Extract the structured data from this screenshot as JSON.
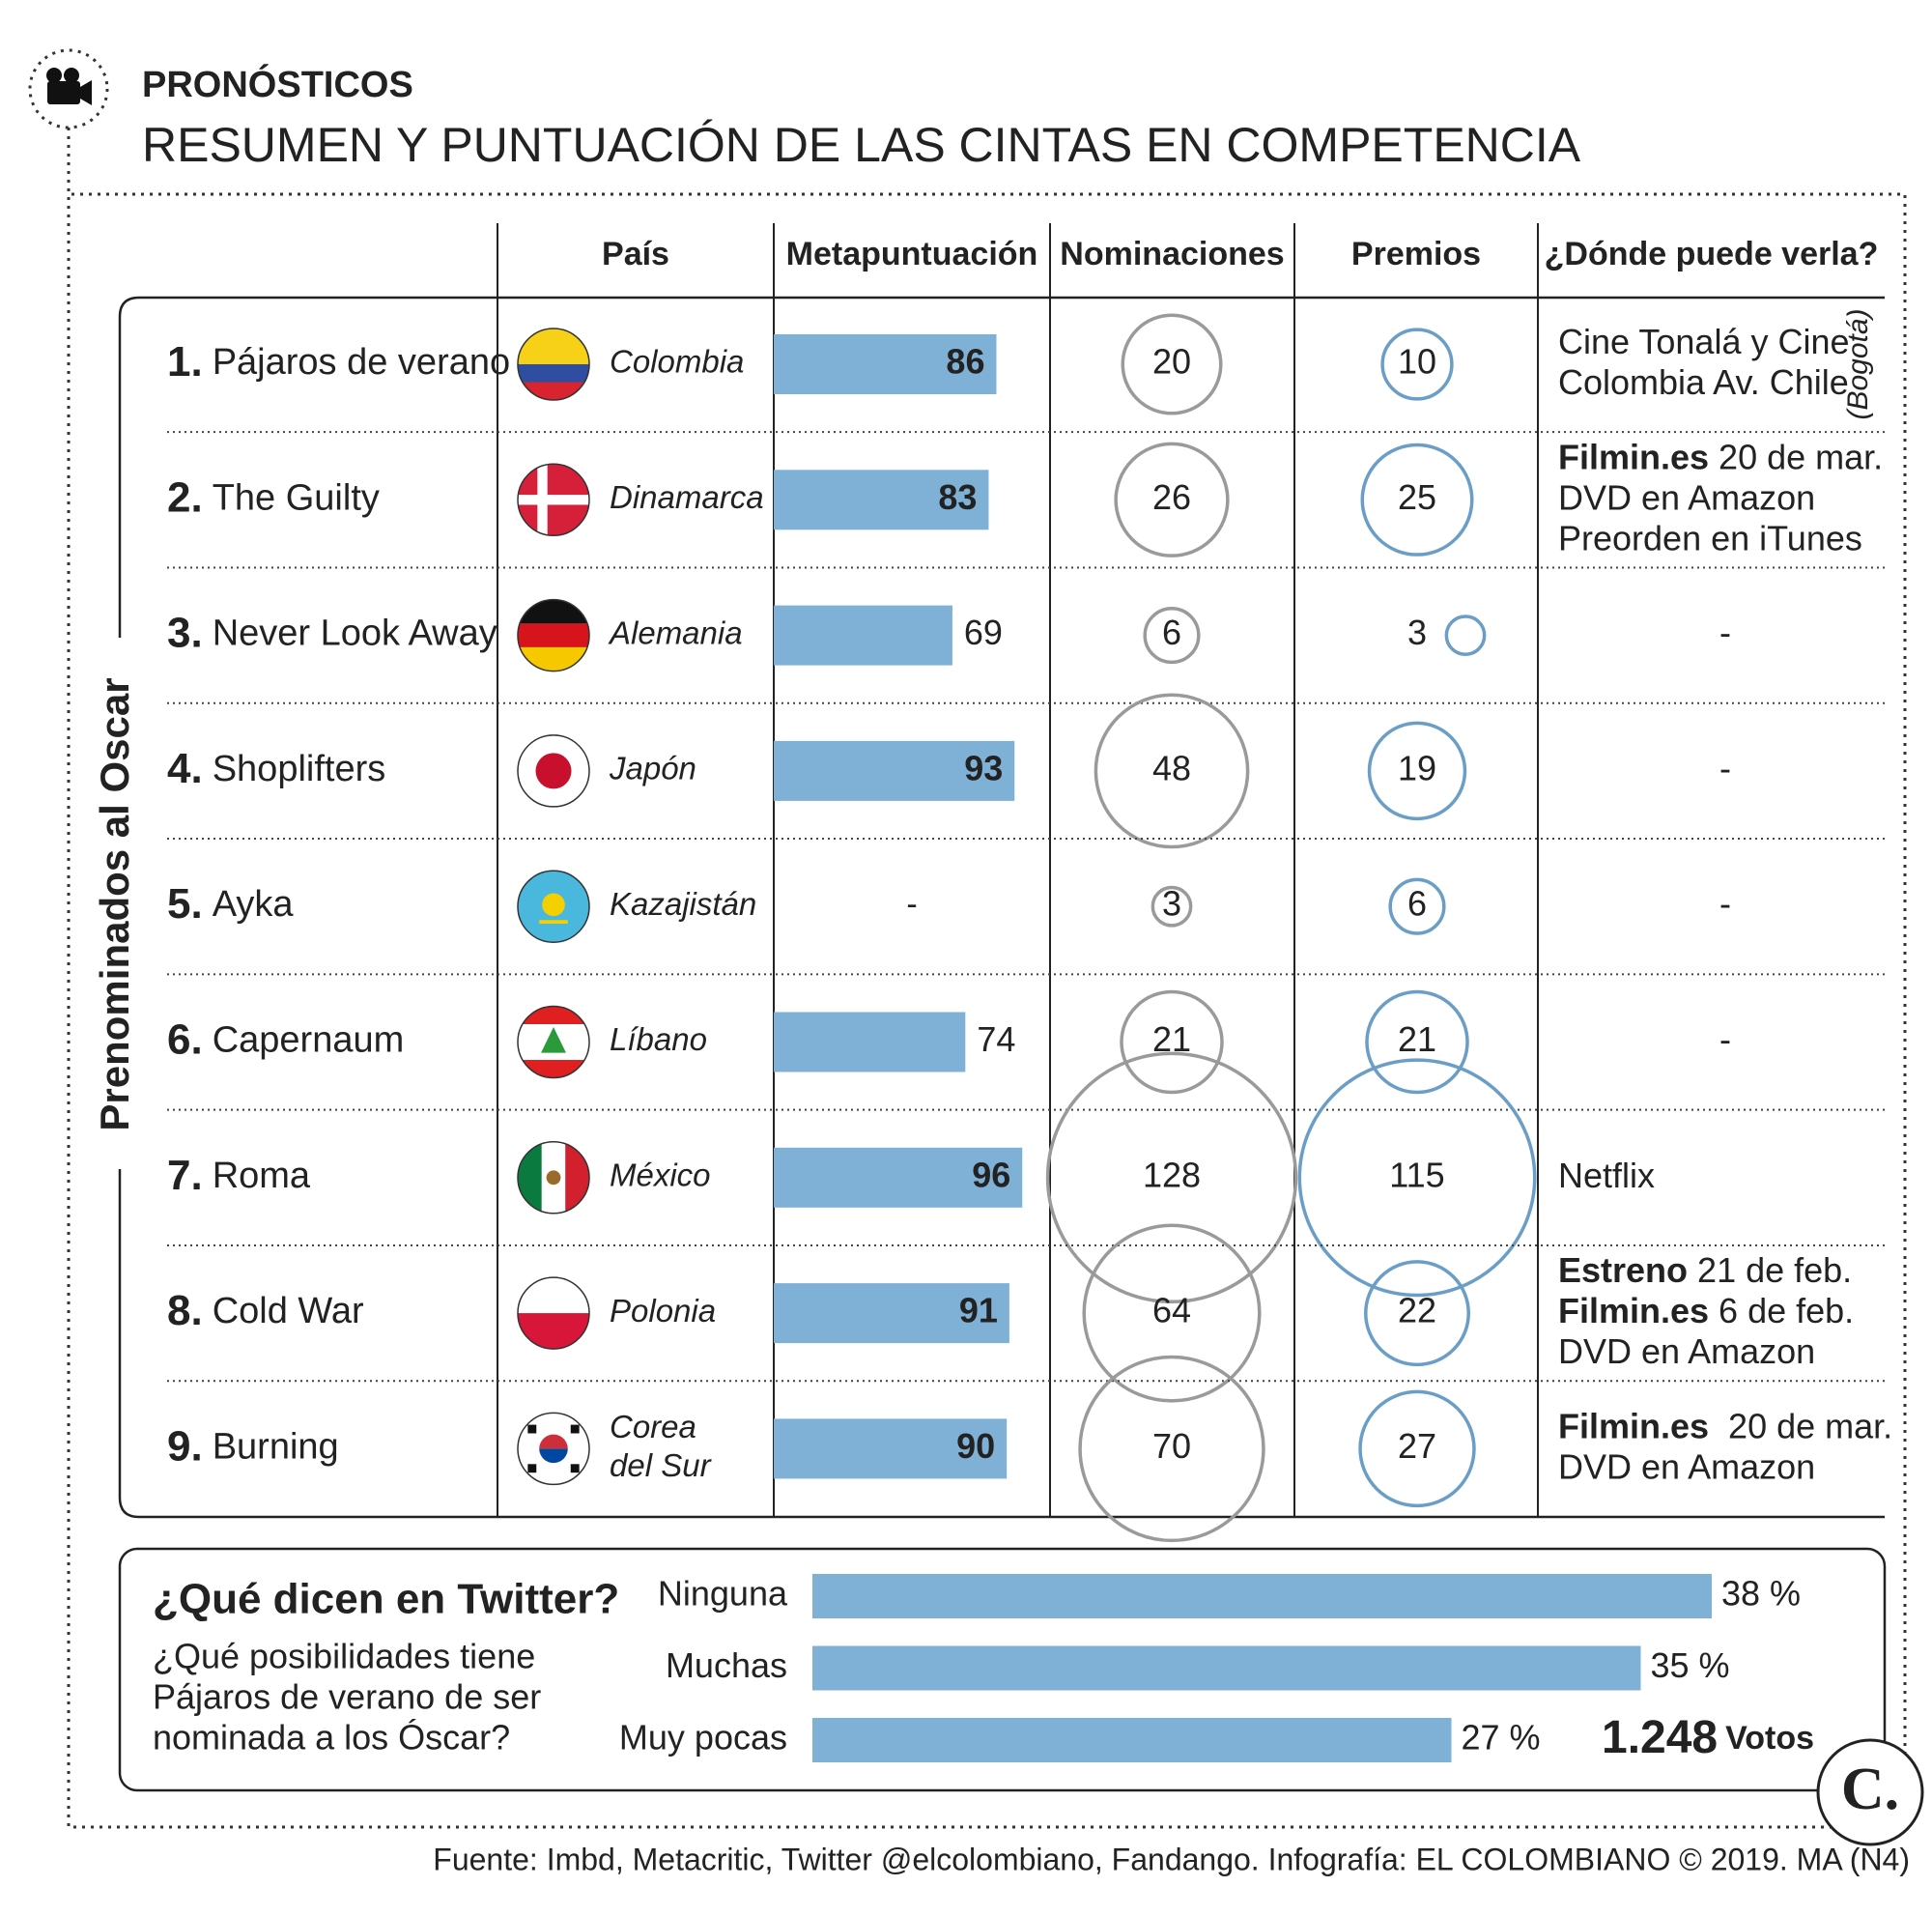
{
  "header": {
    "kicker": "PRONÓSTICOS",
    "title": "RESUMEN Y PUNTUACIÓN DE LAS CINTAS EN COMPETENCIA"
  },
  "table": {
    "side_label": "Prenominados al Oscar",
    "columns": [
      "País",
      "Metapuntuación",
      "Nominaciones",
      "Premios",
      "¿Dónde puede verla?"
    ],
    "rows": [
      {
        "rank": "1.",
        "film": "Pájaros de verano",
        "country": "Colombia",
        "metascore": 86,
        "nominations": 20,
        "awards": 10,
        "where": [
          {
            "text": "Cine Tonalá y Cine"
          },
          {
            "text": "Colombia Av. Chile"
          }
        ],
        "where_note": "(Bogotá)"
      },
      {
        "rank": "2.",
        "film": "The Guilty",
        "country": "Dinamarca",
        "metascore": 83,
        "nominations": 26,
        "awards": 25,
        "where": [
          {
            "bold": "Filmin.es",
            "text": " 20 de mar."
          },
          {
            "text": "DVD en Amazon"
          },
          {
            "text": "Preorden en iTunes"
          }
        ]
      },
      {
        "rank": "3.",
        "film": "Never Look Away",
        "country": "Alemania",
        "metascore": 69,
        "nominations": 6,
        "awards": 3,
        "where": "-"
      },
      {
        "rank": "4.",
        "film": "Shoplifters",
        "country": "Japón",
        "metascore": 93,
        "nominations": 48,
        "awards": 19,
        "where": "-"
      },
      {
        "rank": "5.",
        "film": "Ayka",
        "country": "Kazajistán",
        "metascore": null,
        "metascore_label": "-",
        "nominations": 3,
        "awards": 6,
        "where": "-"
      },
      {
        "rank": "6.",
        "film": "Capernaum",
        "country": "Líbano",
        "metascore": 74,
        "nominations": 21,
        "awards": 21,
        "where": "-"
      },
      {
        "rank": "7.",
        "film": "Roma",
        "country": "México",
        "metascore": 96,
        "nominations": 128,
        "awards": 115,
        "where": [
          {
            "text": "Netflix"
          }
        ]
      },
      {
        "rank": "8.",
        "film": "Cold War",
        "country": "Polonia",
        "metascore": 91,
        "nominations": 64,
        "awards": 22,
        "where": [
          {
            "bold": "Estreno",
            "text": " 21 de feb."
          },
          {
            "bold": "Filmin.es",
            "text": " 6 de feb."
          },
          {
            "text": "DVD en Amazon"
          }
        ]
      },
      {
        "rank": "9.",
        "film": "Burning",
        "country": [
          "Corea",
          "del Sur"
        ],
        "metascore": 90,
        "nominations": 70,
        "awards": 27,
        "where": [
          {
            "bold": "Filmin.es",
            "text": "  20 de mar."
          },
          {
            "text": "DVD en Amazon"
          }
        ]
      }
    ]
  },
  "twitter": {
    "title": "¿Qué dicen en Twitter?",
    "question": [
      "¿Qué posibilidades tiene",
      "Pájaros de verano de ser",
      "nominada a los Óscar?"
    ],
    "bars": [
      {
        "label": "Ninguna",
        "value": 38,
        "value_label": "38 %"
      },
      {
        "label": "Muchas",
        "value": 35,
        "value_label": "35 %"
      },
      {
        "label": "Muy pocas",
        "value": 27,
        "value_label": "27 %"
      }
    ],
    "votes": "1.248",
    "votes_unit": "Votos"
  },
  "logo": "C.",
  "footer": "Fuente: Imbd, Metacritic, Twitter @elcolombiano, Fandango. Infografía: EL COLOMBIANO © 2019. MA (N4)"
}
